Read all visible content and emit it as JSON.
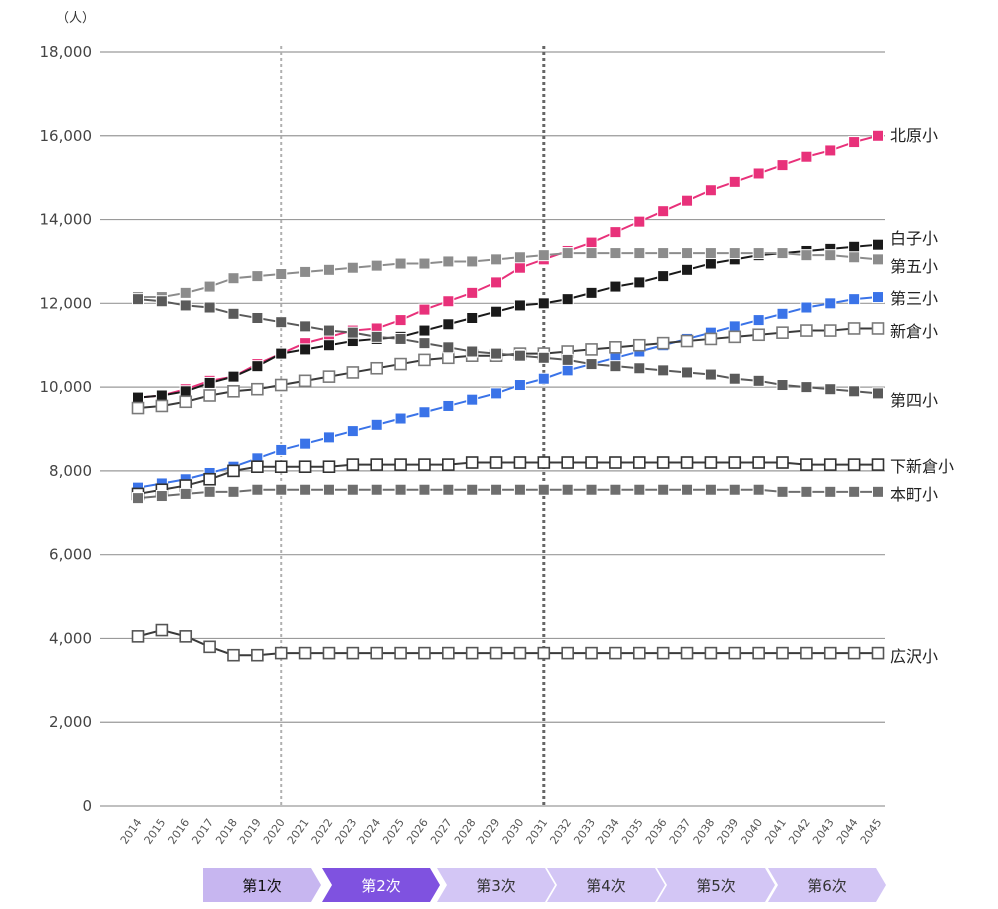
{
  "chart_data": {
    "type": "line",
    "unit_label": "（人）",
    "ylim": [
      0,
      18000
    ],
    "yticks": [
      "0",
      "2,000",
      "4,000",
      "6,000",
      "8,000",
      "10,000",
      "12,000",
      "14,000",
      "16,000",
      "18,000"
    ],
    "x": [
      "2014",
      "2015",
      "2016",
      "2017",
      "2018",
      "2019",
      "2020",
      "2021",
      "2022",
      "2023",
      "2024",
      "2025",
      "2026",
      "2027",
      "2028",
      "2029",
      "2030",
      "2031",
      "2032",
      "2033",
      "2034",
      "2035",
      "2036",
      "2037",
      "2038",
      "2039",
      "2040",
      "2041",
      "2042",
      "2043",
      "2044",
      "2045"
    ],
    "vlines": [
      {
        "x": "2020",
        "style": "light"
      },
      {
        "x": "2031",
        "style": "dark"
      }
    ],
    "grid": true,
    "series": [
      {
        "name": "北原小",
        "color": "#e8317a",
        "fill": "filled",
        "values": [
          9750,
          9800,
          9950,
          10150,
          10250,
          10550,
          10800,
          11050,
          11200,
          11350,
          11400,
          11600,
          11850,
          12050,
          12250,
          12500,
          12850,
          13050,
          13250,
          13450,
          13700,
          13950,
          14200,
          14450,
          14700,
          14900,
          15100,
          15300,
          15500,
          15650,
          15850,
          16000
        ]
      },
      {
        "name": "白子小",
        "color": "#1a1a1a",
        "fill": "filled",
        "values": [
          9750,
          9800,
          9900,
          10100,
          10250,
          10500,
          10800,
          10900,
          11000,
          11100,
          11150,
          11200,
          11350,
          11500,
          11650,
          11800,
          11950,
          12000,
          12100,
          12250,
          12400,
          12500,
          12650,
          12800,
          12950,
          13050,
          13150,
          13200,
          13250,
          13300,
          13350,
          13400
        ]
      },
      {
        "name": "第五小",
        "color": "#8c8c8c",
        "fill": "filled",
        "values": [
          12150,
          12150,
          12250,
          12400,
          12600,
          12650,
          12700,
          12750,
          12800,
          12850,
          12900,
          12950,
          12950,
          13000,
          13000,
          13050,
          13100,
          13150,
          13200,
          13200,
          13200,
          13200,
          13200,
          13200,
          13200,
          13200,
          13200,
          13200,
          13150,
          13150,
          13100,
          13050
        ]
      },
      {
        "name": "第三小",
        "color": "#3a73e8",
        "fill": "filled",
        "values": [
          7600,
          7700,
          7800,
          7950,
          8100,
          8300,
          8500,
          8650,
          8800,
          8950,
          9100,
          9250,
          9400,
          9550,
          9700,
          9850,
          10050,
          10200,
          10400,
          10550,
          10700,
          10850,
          11000,
          11150,
          11300,
          11450,
          11600,
          11750,
          11900,
          12000,
          12100,
          12150
        ]
      },
      {
        "name": "新倉小",
        "color": "#7a7a7a",
        "fill": "hollow",
        "values": [
          9500,
          9550,
          9650,
          9800,
          9900,
          9950,
          10050,
          10150,
          10250,
          10350,
          10450,
          10550,
          10650,
          10700,
          10750,
          10750,
          10800,
          10800,
          10850,
          10900,
          10950,
          11000,
          11050,
          11100,
          11150,
          11200,
          11250,
          11300,
          11350,
          11350,
          11400,
          11400
        ]
      },
      {
        "name": "第四小",
        "color": "#5a5a5a",
        "fill": "filled",
        "values": [
          12100,
          12050,
          11950,
          11900,
          11750,
          11650,
          11550,
          11450,
          11350,
          11300,
          11200,
          11150,
          11050,
          10950,
          10850,
          10800,
          10750,
          10700,
          10650,
          10550,
          10500,
          10450,
          10400,
          10350,
          10300,
          10200,
          10150,
          10050,
          10000,
          9950,
          9900,
          9850
        ]
      },
      {
        "name": "下新倉小",
        "color": "#333333",
        "fill": "hollow",
        "values": [
          7450,
          7550,
          7650,
          7800,
          8000,
          8100,
          8100,
          8100,
          8100,
          8150,
          8150,
          8150,
          8150,
          8150,
          8200,
          8200,
          8200,
          8200,
          8200,
          8200,
          8200,
          8200,
          8200,
          8200,
          8200,
          8200,
          8200,
          8200,
          8150,
          8150,
          8150,
          8150
        ]
      },
      {
        "name": "本町小",
        "color": "#6e6e6e",
        "fill": "filled",
        "values": [
          7350,
          7400,
          7450,
          7500,
          7500,
          7550,
          7550,
          7550,
          7550,
          7550,
          7550,
          7550,
          7550,
          7550,
          7550,
          7550,
          7550,
          7550,
          7550,
          7550,
          7550,
          7550,
          7550,
          7550,
          7550,
          7550,
          7550,
          7500,
          7500,
          7500,
          7500,
          7500
        ]
      },
      {
        "name": "広沢小",
        "color": "#555555",
        "fill": "hollow",
        "values": [
          4050,
          4200,
          4050,
          3800,
          3600,
          3600,
          3650,
          3650,
          3650,
          3650,
          3650,
          3650,
          3650,
          3650,
          3650,
          3650,
          3650,
          3650,
          3650,
          3650,
          3650,
          3650,
          3650,
          3650,
          3650,
          3650,
          3650,
          3650,
          3650,
          3650,
          3650,
          3650
        ]
      }
    ]
  },
  "phases": [
    {
      "label": "第1次",
      "bg": "#c7b6f0",
      "color": "#111111"
    },
    {
      "label": "第2次",
      "bg": "#7f52e0",
      "color": "#ffffff"
    },
    {
      "label": "第3次",
      "bg": "#d3c6f5",
      "color": "#333333"
    },
    {
      "label": "第4次",
      "bg": "#d3c6f5",
      "color": "#333333"
    },
    {
      "label": "第5次",
      "bg": "#d3c6f5",
      "color": "#333333"
    },
    {
      "label": "第6次",
      "bg": "#d3c6f5",
      "color": "#333333"
    }
  ]
}
